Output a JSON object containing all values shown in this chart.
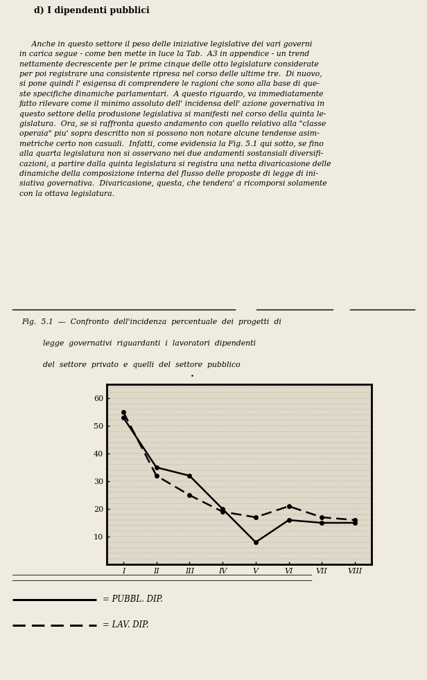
{
  "title_line1": "Fig.  5.1  —  Confronto  dell'incidenza  percentuale  dei  progetti  di",
  "title_line2": "legge  governativi  riguardanti  i  lavoratori  dipendenti",
  "title_line3": "del  settore  privato  e  quelli  del  settore  pubblico",
  "header": "d) I dipendenti pubblici",
  "body_lines": [
    "     Anche in questo settore il peso delle iniziative legislative dei vari governi",
    "in carica segue - come ben mette in luce la Tab.  A3 in appendice - un trend",
    "nettamente decrescente per le prime cinque delle otto legislature considerate",
    "per poi registrare una consistente ripresa nel corso delle ultime tre.  Di nuovo,",
    "si pone quindi l' esigensa di comprendere le ragioni che sono alla base di que-",
    "ste specifiche dinamiche parlamentari.  A questo riguardo, va immediatamente",
    "fatto rilevare come il minimo assoluto dell' incidensa dell' azione governativa in",
    "questo settore della produsione legislativa si manifesti nel corso della quinta le-",
    "gislatura.  Ora, se si raffronta questo andamento con quello relativo alla \"classe",
    "operaia\" piu' sopra descritto non si possono non notare alcune tendense asim-",
    "metriche certo non casuali.  Infatti, come evidensia la Fig. 5.1 qui sotto, se fino",
    "alla quarta legislatura non si osservano nei due andamenti sostansiali diversifi-",
    "cazioni, a partire dalla quinta legislatura si registra una netta divaricasione delle",
    "dinamiche della composizione interna del flusso delle proposte di legge di ini-",
    "siativa governativa.  Divaricasione, questa, che tendera' a ricomporsi solamente",
    "con la ottava legislatura."
  ],
  "x_labels": [
    "I",
    "II",
    "III",
    "IV",
    "V",
    "VI",
    "VII",
    "VIII"
  ],
  "x_values": [
    1,
    2,
    3,
    4,
    5,
    6,
    7,
    8
  ],
  "pubbl_dip": [
    53,
    35,
    32,
    20,
    8,
    16,
    15,
    15
  ],
  "lav_dip": [
    55,
    32,
    25,
    19,
    17,
    21,
    17,
    16
  ],
  "ylim": [
    0,
    65
  ],
  "yticks": [
    10,
    20,
    30,
    40,
    50,
    60
  ],
  "legend_pubbl": "= PUBBL. DIP.",
  "legend_lav": "= LAV. DIP.",
  "line_color": "#000000",
  "background_color": "#f0ebe0",
  "chart_bg": "#e0d8c8",
  "figsize": [
    6.16,
    9.82
  ],
  "dpi": 100
}
